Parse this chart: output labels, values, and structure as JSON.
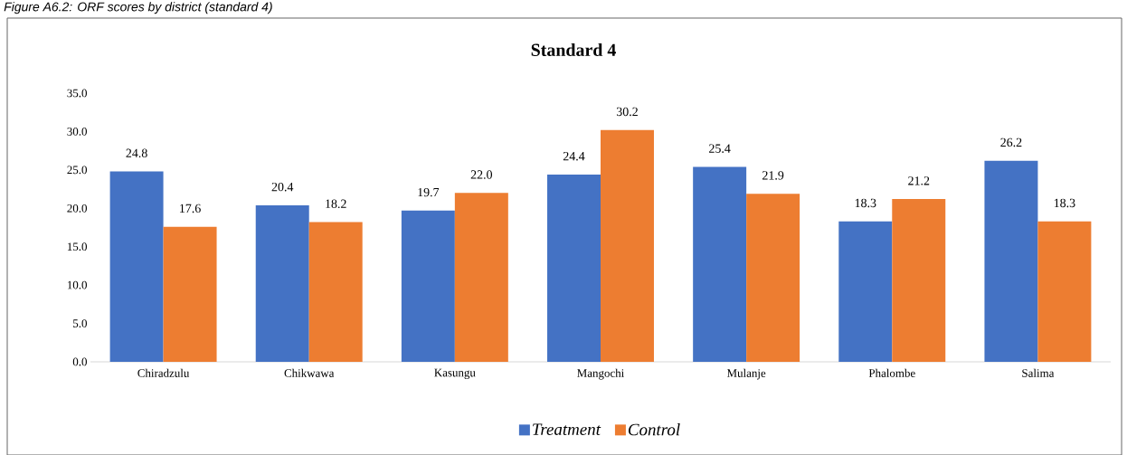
{
  "chart_data": {
    "type": "bar",
    "title": "Standard 4",
    "annotations": [
      "Figure A6.2: ORF scores by district (standard 4)"
    ],
    "categories": [
      "Chiradzulu",
      "Chikwawa",
      "Kasungu",
      "Mangochi",
      "Mulanje",
      "Phalombe",
      "Salima"
    ],
    "series": [
      {
        "name": "Treatment",
        "color": "#4472c4",
        "values": [
          24.8,
          20.4,
          19.7,
          24.4,
          25.4,
          18.3,
          26.2
        ],
        "value_labels": [
          "24.8",
          "20.4",
          "19.7",
          "24.4",
          "25.4",
          "18.3",
          "26.2"
        ]
      },
      {
        "name": "Control",
        "color": "#ed7d31",
        "values": [
          17.6,
          18.2,
          22.0,
          30.2,
          21.9,
          21.2,
          18.3
        ],
        "value_labels": [
          "17.6",
          "18.2",
          "22.0",
          "30.2",
          "21.9",
          "21.2",
          "18.3"
        ]
      }
    ],
    "ylim": [
      0,
      35
    ],
    "yticks": [
      {
        "value": 0,
        "label": "0.0"
      },
      {
        "value": 5,
        "label": "5.0"
      },
      {
        "value": 10,
        "label": "10.0"
      },
      {
        "value": 15,
        "label": "15.0"
      },
      {
        "value": 20,
        "label": "20.0"
      },
      {
        "value": 25,
        "label": "25.0"
      },
      {
        "value": 30,
        "label": "30.0"
      },
      {
        "value": 35,
        "label": "35.0"
      }
    ],
    "grid": false,
    "legend": "bottom"
  }
}
